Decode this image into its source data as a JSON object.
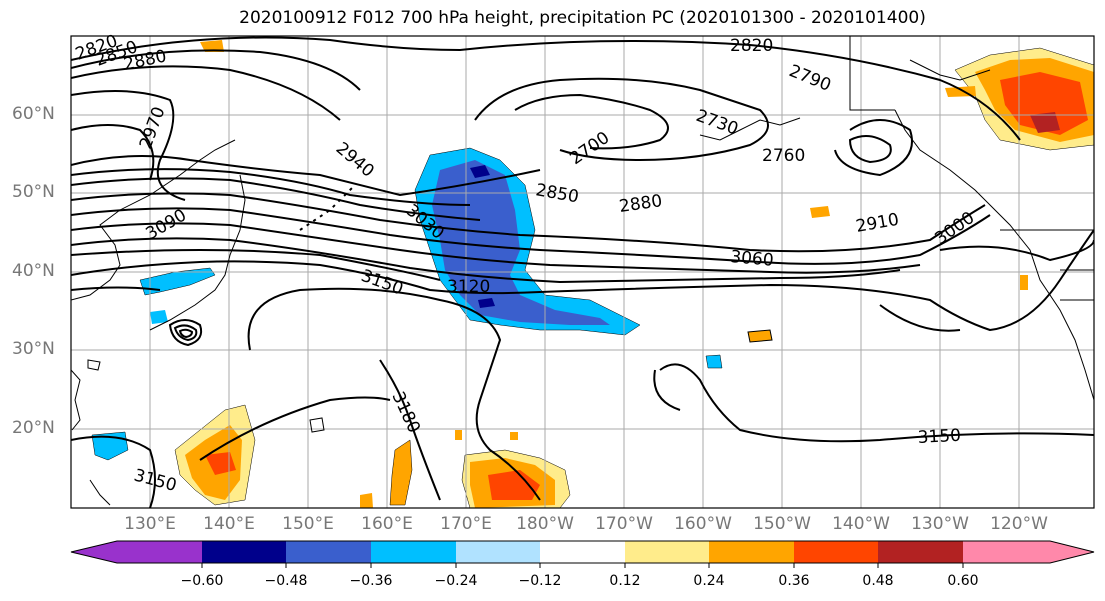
{
  "title": "2020100912 F012 700 hPa height, precipitation PC (2020101300 - 2020101400)",
  "lat_labels": [
    "60°N",
    "50°N",
    "40°N",
    "30°N",
    "20°N"
  ],
  "lon_labels": [
    "130°E",
    "140°E",
    "150°E",
    "160°E",
    "170°E",
    "180°W",
    "170°W",
    "160°W",
    "150°W",
    "140°W",
    "130°W",
    "120°W"
  ],
  "contour_labels": [
    "2820",
    "2850",
    "2880",
    "2970",
    "2940",
    "3090",
    "3030",
    "2850",
    "2880",
    "2910",
    "2700",
    "2730",
    "2790",
    "2820",
    "2760",
    "3000",
    "3060",
    "3120",
    "3150",
    "3180",
    "3150",
    "3150"
  ],
  "colorbar": {
    "ticks": [
      "−0.60",
      "−0.48",
      "−0.36",
      "−0.24",
      "−0.12",
      "0.12",
      "0.24",
      "0.36",
      "0.48",
      "0.60"
    ],
    "colors": [
      "#9932cc",
      "#00008b",
      "#3a5fcd",
      "#00bfff",
      "#b0e2ff",
      "#ffffff",
      "#ffec8b",
      "#ffa500",
      "#ff4500",
      "#b22222",
      "#ff88aa"
    ]
  },
  "colors": {
    "grid": "#aaaaaa",
    "contour": "#000000",
    "coast": "#000000"
  }
}
